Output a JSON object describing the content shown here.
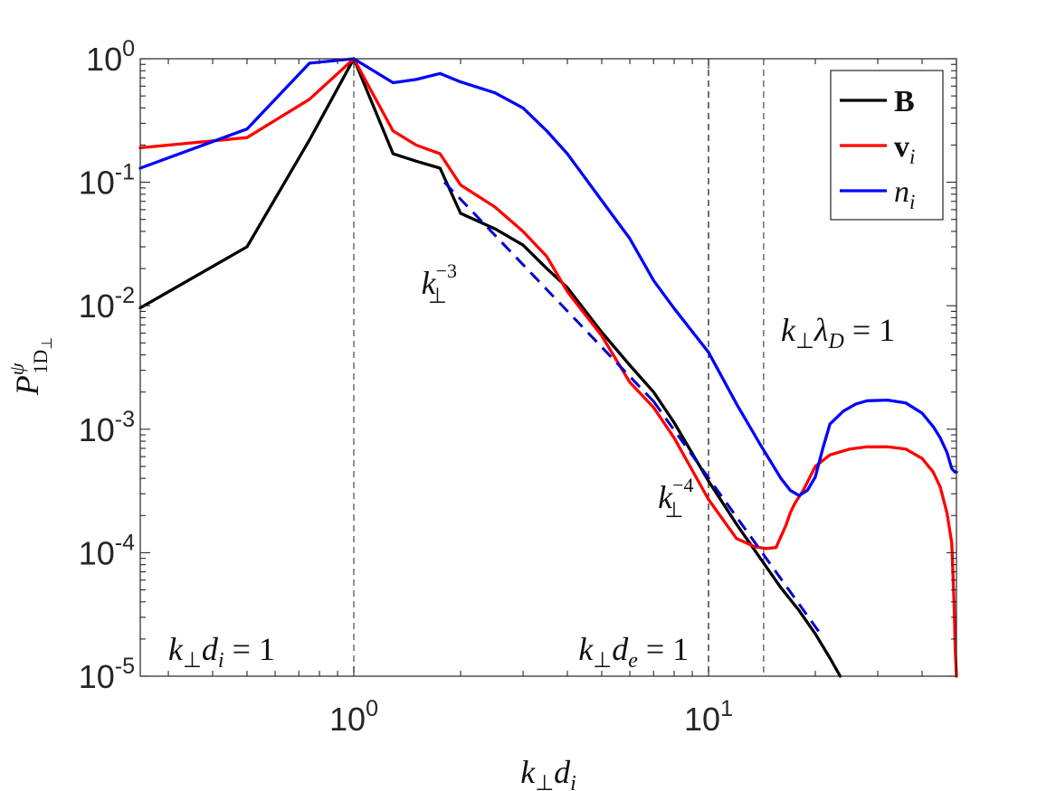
{
  "chart_data": {
    "type": "line",
    "title": "",
    "xlabel": {
      "base": "k",
      "sub1": "⊥",
      "mid": "d",
      "sub2": "i"
    },
    "ylabel": {
      "base": "P",
      "sup": "ψ",
      "sub": "1D",
      "subsub": "⊥"
    },
    "xscale": "log",
    "yscale": "log",
    "xlim": [
      0.25,
      50
    ],
    "ylim": [
      1e-05,
      1
    ],
    "x_ticks": [
      {
        "value": 1,
        "base": "10",
        "exp": "0"
      },
      {
        "value": 10,
        "base": "10",
        "exp": "1"
      }
    ],
    "y_ticks": [
      {
        "value": 1.0,
        "base": "10",
        "exp": "0"
      },
      {
        "value": 0.1,
        "base": "10",
        "exp": "-1"
      },
      {
        "value": 0.01,
        "base": "10",
        "exp": "-2"
      },
      {
        "value": 0.001,
        "base": "10",
        "exp": "-3"
      },
      {
        "value": 0.0001,
        "base": "10",
        "exp": "-4"
      },
      {
        "value": 1e-05,
        "base": "10",
        "exp": "-5"
      }
    ],
    "legend_position": "top-right",
    "series": [
      {
        "name": "B",
        "legend_label": "B",
        "color": "#000000",
        "x": [
          0.25,
          0.5,
          0.75,
          1.0,
          1.29,
          1.5,
          1.75,
          2.0,
          2.5,
          3.0,
          3.5,
          4.0,
          5.0,
          6.0,
          7.0,
          8.0,
          10.0,
          12.0,
          14.0,
          16.0,
          18.0,
          20.0,
          22.0,
          23.5
        ],
        "y": [
          0.0096,
          0.03,
          0.22,
          1.0,
          0.17,
          0.148,
          0.13,
          0.056,
          0.042,
          0.031,
          0.02,
          0.014,
          0.0061,
          0.0033,
          0.002,
          0.00113,
          0.00038,
          0.00017,
          9e-05,
          5.2e-05,
          3.4e-05,
          2.2e-05,
          1.4e-05,
          1e-05
        ]
      },
      {
        "name": "v_i",
        "legend_label": "v",
        "legend_sub": "i",
        "color": "#ff0000",
        "x": [
          0.25,
          0.5,
          0.75,
          1.0,
          1.29,
          1.5,
          1.75,
          2.0,
          2.5,
          3.0,
          3.5,
          4.0,
          5.0,
          6.0,
          7.0,
          8.0,
          10.0,
          12.0,
          13.5,
          14.5,
          15.5,
          16.5,
          17.0,
          17.5,
          18.5,
          20.0,
          22.0,
          25.0,
          28.0,
          32.0,
          36.0,
          40.0,
          43.0,
          45.0,
          47.0,
          48.5,
          49.2,
          49.6,
          50.0
        ],
        "y": [
          0.19,
          0.23,
          0.47,
          1.0,
          0.26,
          0.2,
          0.17,
          0.095,
          0.063,
          0.04,
          0.025,
          0.013,
          0.0057,
          0.0024,
          0.0015,
          0.00085,
          0.00027,
          0.00013,
          0.000112,
          0.000108,
          0.00011,
          0.000165,
          0.00021,
          0.00025,
          0.00032,
          0.0005,
          0.00062,
          0.00069,
          0.00072,
          0.00072,
          0.00069,
          0.00058,
          0.00045,
          0.00034,
          0.00021,
          0.00012,
          4e-05,
          1.7e-05,
          1e-05
        ]
      },
      {
        "name": "n_i",
        "legend_label": "n",
        "legend_sub": "i",
        "color": "#0000ff",
        "x": [
          0.25,
          0.5,
          0.75,
          1.0,
          1.29,
          1.5,
          1.75,
          2.0,
          2.5,
          3.0,
          3.5,
          4.0,
          5.0,
          6.0,
          7.0,
          8.0,
          10.0,
          12.0,
          14.0,
          16.0,
          17.0,
          18.0,
          19.0,
          20.0,
          21.0,
          22.0,
          24.0,
          26.0,
          28.0,
          32.0,
          36.0,
          40.0,
          43.0,
          45.0,
          47.0,
          48.5,
          49.5,
          50.0
        ],
        "y": [
          0.13,
          0.27,
          0.92,
          1.0,
          0.64,
          0.68,
          0.76,
          0.65,
          0.53,
          0.4,
          0.26,
          0.17,
          0.071,
          0.035,
          0.016,
          0.0095,
          0.0042,
          0.0016,
          0.00075,
          0.0004,
          0.00032,
          0.00029,
          0.00032,
          0.00041,
          0.0007,
          0.0011,
          0.0014,
          0.0016,
          0.0017,
          0.00172,
          0.00163,
          0.00135,
          0.00105,
          0.00085,
          0.00065,
          0.00048,
          0.00045,
          0.00045
        ]
      }
    ],
    "fit_lines": [
      {
        "name": "k^-3 fit",
        "color": "#0000cc",
        "dash": true,
        "x": [
          1.8,
          7.0
        ],
        "y": [
          0.1,
          0.00168
        ]
      },
      {
        "name": "k^-4 fit",
        "color": "#0000cc",
        "dash": true,
        "x": [
          7.0,
          20.5
        ],
        "y": [
          0.00168,
          2.28e-05
        ]
      }
    ],
    "vlines": [
      {
        "name": "k-di-line",
        "x": 1.0,
        "color": "#555555"
      },
      {
        "name": "k-de-line",
        "x": 10.0,
        "color": "#222222"
      },
      {
        "name": "k-lambda-d-line",
        "x": 14.3,
        "color": "#555555"
      }
    ],
    "annotations": [
      {
        "id": "slope3",
        "base": "k",
        "sub": "⊥",
        "sup": "−3",
        "x": 1.55,
        "y": 0.0125
      },
      {
        "id": "slope4",
        "base": "k",
        "sub": "⊥",
        "sup": "−4",
        "x": 7.2,
        "y": 0.00023
      },
      {
        "id": "kdi",
        "text_base": "k",
        "text_sub": "⊥",
        "text_mid": "d",
        "text_sub2": "i",
        "text_eq": " = 1",
        "x": 0.3,
        "y": 1.35e-05
      },
      {
        "id": "kde",
        "text_base": "k",
        "text_sub": "⊥",
        "text_mid": "d",
        "text_sub2": "e",
        "text_eq": " = 1",
        "x": 4.3,
        "y": 1.35e-05
      },
      {
        "id": "kld",
        "text_base": "k",
        "text_sub": "⊥",
        "text_mid": "λ",
        "text_sub2": "D",
        "text_eq": " = 1",
        "x": 16.0,
        "y": 0.0052
      }
    ]
  }
}
